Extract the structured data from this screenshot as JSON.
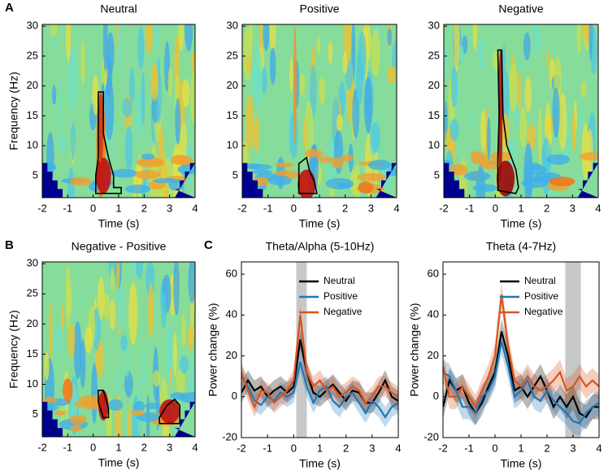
{
  "chart_data": [
    {
      "type": "heatmap",
      "panel_label": "A",
      "title": "Neutral",
      "xlabel": "Time (s)",
      "ylabel": "Frequency (Hz)",
      "xlim": [
        -2,
        4
      ],
      "ylim": [
        1.3,
        30.3
      ],
      "xticks": [
        -2,
        -1,
        0,
        1,
        2,
        3,
        4
      ],
      "yticks": [
        5,
        10,
        15,
        20,
        25,
        30
      ]
    },
    {
      "type": "heatmap",
      "title": "Positive",
      "xlabel": "Time (s)",
      "xlim": [
        -2,
        4
      ],
      "ylim": [
        1.3,
        30.3
      ],
      "xticks": [
        -2,
        -1,
        0,
        1,
        2,
        3,
        4
      ],
      "yticks": [
        5,
        10,
        15,
        20,
        25,
        30
      ]
    },
    {
      "type": "heatmap",
      "title": "Negative",
      "xlabel": "Time (s)",
      "xlim": [
        -2,
        4
      ],
      "ylim": [
        1.3,
        30.3
      ],
      "xticks": [
        -2,
        -1,
        0,
        1,
        2,
        3,
        4
      ],
      "yticks": [
        5,
        10,
        15,
        20,
        25,
        30
      ]
    },
    {
      "type": "heatmap",
      "panel_label": "B",
      "title": "Negative - Positive",
      "xlabel": "Time (s)",
      "ylabel": "Frequency (Hz)",
      "xlim": [
        -2,
        4
      ],
      "ylim": [
        1.3,
        30.3
      ],
      "xticks": [
        -2,
        -1,
        0,
        1,
        2,
        3,
        4
      ],
      "yticks": [
        5,
        10,
        15,
        20,
        25,
        30
      ]
    },
    {
      "type": "line",
      "panel_label": "C",
      "title": "Theta/Alpha (5-10Hz)",
      "xlabel": "Time (s)",
      "ylabel": "Power change (%)",
      "xlim": [
        -2,
        4
      ],
      "ylim": [
        -20,
        66
      ],
      "xticks": [
        -2,
        -1,
        0,
        1,
        2,
        3,
        4
      ],
      "yticks": [
        -20,
        0,
        20,
        40,
        60
      ],
      "highlight": [
        0.1,
        0.5
      ],
      "legend": "upper right",
      "x": [
        -2,
        -1.75,
        -1.5,
        -1.25,
        -1,
        -0.75,
        -0.5,
        -0.25,
        0,
        0.25,
        0.5,
        0.75,
        1,
        1.25,
        1.5,
        1.75,
        2,
        2.25,
        2.5,
        2.75,
        3,
        3.25,
        3.5,
        3.75,
        4
      ],
      "series": [
        {
          "name": "Neutral",
          "color": "#000000",
          "error": 5,
          "values": [
            2,
            8,
            3,
            5,
            0,
            3,
            5,
            2,
            5,
            28,
            12,
            2,
            0,
            3,
            6,
            2,
            -2,
            3,
            2,
            -3,
            -3,
            2,
            8,
            0,
            -2
          ]
        },
        {
          "name": "Positive",
          "color": "#1f77b4",
          "error": 5,
          "values": [
            10,
            5,
            -2,
            -4,
            0,
            -2,
            2,
            0,
            2,
            17,
            5,
            -3,
            3,
            5,
            -2,
            -5,
            0,
            2,
            -3,
            -8,
            -2,
            -5,
            -10,
            -5,
            -3
          ]
        },
        {
          "name": "Negative",
          "color": "#d9541e",
          "error": 5,
          "values": [
            12,
            3,
            -5,
            3,
            2,
            -3,
            0,
            3,
            8,
            40,
            12,
            5,
            8,
            3,
            5,
            0,
            2,
            5,
            3,
            -3,
            0,
            5,
            5,
            2,
            0
          ]
        }
      ]
    },
    {
      "type": "line",
      "title": "Theta (4-7Hz)",
      "xlabel": "Time (s)",
      "ylabel": "Power change (%)",
      "xlim": [
        -2,
        4
      ],
      "ylim": [
        -20,
        66
      ],
      "xticks": [
        -2,
        -1,
        0,
        1,
        2,
        3,
        4
      ],
      "yticks": [
        -20,
        0,
        20,
        40,
        60
      ],
      "highlight": [
        2.7,
        3.3
      ],
      "legend": "upper right",
      "x": [
        -2,
        -1.75,
        -1.5,
        -1.25,
        -1,
        -0.75,
        -0.5,
        -0.25,
        0,
        0.25,
        0.5,
        0.75,
        1,
        1.25,
        1.5,
        1.75,
        2,
        2.25,
        2.5,
        2.75,
        3,
        3.25,
        3.5,
        3.75,
        4
      ],
      "series": [
        {
          "name": "Neutral",
          "color": "#000000",
          "error": 6,
          "values": [
            -5,
            8,
            3,
            5,
            -3,
            -8,
            -3,
            5,
            12,
            32,
            20,
            3,
            5,
            0,
            5,
            10,
            3,
            -5,
            0,
            -5,
            0,
            -8,
            -10,
            -5,
            -5
          ]
        },
        {
          "name": "Positive",
          "color": "#1f77b4",
          "error": 6,
          "values": [
            12,
            10,
            3,
            -5,
            -5,
            -8,
            0,
            3,
            10,
            27,
            15,
            0,
            3,
            8,
            0,
            -2,
            3,
            -2,
            -5,
            -8,
            -12,
            -13,
            -8,
            -5,
            -3
          ]
        },
        {
          "name": "Negative",
          "color": "#d9541e",
          "error": 6,
          "values": [
            15,
            0,
            0,
            5,
            0,
            -5,
            3,
            10,
            20,
            50,
            25,
            8,
            5,
            10,
            5,
            3,
            5,
            8,
            12,
            3,
            5,
            10,
            5,
            8,
            5
          ]
        }
      ]
    }
  ]
}
